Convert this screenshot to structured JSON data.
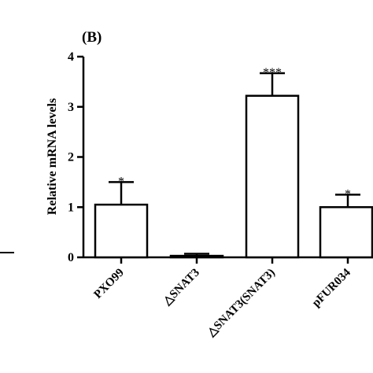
{
  "chart_data": {
    "type": "bar",
    "panel_label": "(B)",
    "title": "",
    "xlabel": "",
    "ylabel": "Relative mRNA levels",
    "ylim": [
      0,
      4
    ],
    "yticks": [
      "0",
      "1",
      "2",
      "3",
      "4"
    ],
    "categories": [
      "PXO99",
      "△SNAT3",
      "△SNAT3(SNAT3)",
      "pFUR034"
    ],
    "values": [
      1.05,
      0.03,
      3.22,
      1.0
    ],
    "errors": [
      0.45,
      0.04,
      0.45,
      0.25
    ],
    "significance": [
      "*",
      "",
      "***",
      "*"
    ],
    "bar_fill": "#ffffff",
    "bar_stroke": "#000000",
    "grid": false
  }
}
